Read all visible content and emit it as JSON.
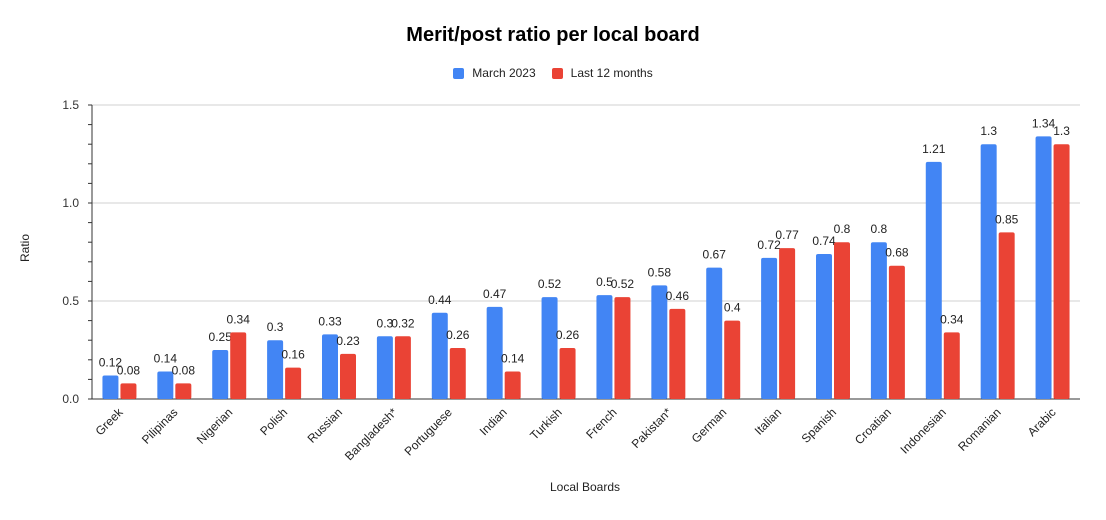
{
  "chart_data": {
    "type": "bar",
    "title": "Merit/post ratio per local board",
    "xlabel": "Local Boards",
    "ylabel": "Ratio",
    "ylim": [
      0,
      1.5
    ],
    "yticks": [
      "0.0",
      "0.5",
      "1.0",
      "1.5"
    ],
    "grid": true,
    "legend_position": "top",
    "categories": [
      "Greek",
      "Pilipinas",
      "Nigerian",
      "Polish",
      "Russian",
      "Bangladesh*",
      "Portuguese",
      "Indian",
      "Turkish",
      "French",
      "Pakistan*",
      "German",
      "Italian",
      "Spanish",
      "Croatian",
      "Indonesian",
      "Romanian",
      "Arabic"
    ],
    "series": [
      {
        "name": "March 2023",
        "color": "#4285f4",
        "values": [
          0.12,
          0.14,
          0.25,
          0.3,
          0.33,
          0.32,
          0.44,
          0.47,
          0.52,
          0.53,
          0.58,
          0.67,
          0.72,
          0.74,
          0.8,
          1.21,
          1.3,
          1.34
        ],
        "labels": [
          "0.12",
          "0.14",
          "0.25",
          "0.3",
          "0.33",
          "0.3",
          "0.44",
          "0.47",
          "0.52",
          "0.5",
          "0.58",
          "0.67",
          "0.72",
          "0.74",
          "0.8",
          "1.21",
          "1.3",
          "1.34"
        ]
      },
      {
        "name": "Last 12 months",
        "color": "#ea4335",
        "values": [
          0.08,
          0.08,
          0.34,
          0.16,
          0.23,
          0.32,
          0.26,
          0.14,
          0.26,
          0.52,
          0.46,
          0.4,
          0.77,
          0.8,
          0.68,
          0.34,
          0.85,
          1.3
        ],
        "labels": [
          "0.08",
          "0.08",
          "0.34",
          "0.16",
          "0.23",
          "0.32",
          "0.26",
          "0.14",
          "0.26",
          "0.52",
          "0.46",
          "0.4",
          "0.77",
          "0.8",
          "0.68",
          "0.34",
          "0.85",
          "1.3"
        ]
      }
    ]
  }
}
